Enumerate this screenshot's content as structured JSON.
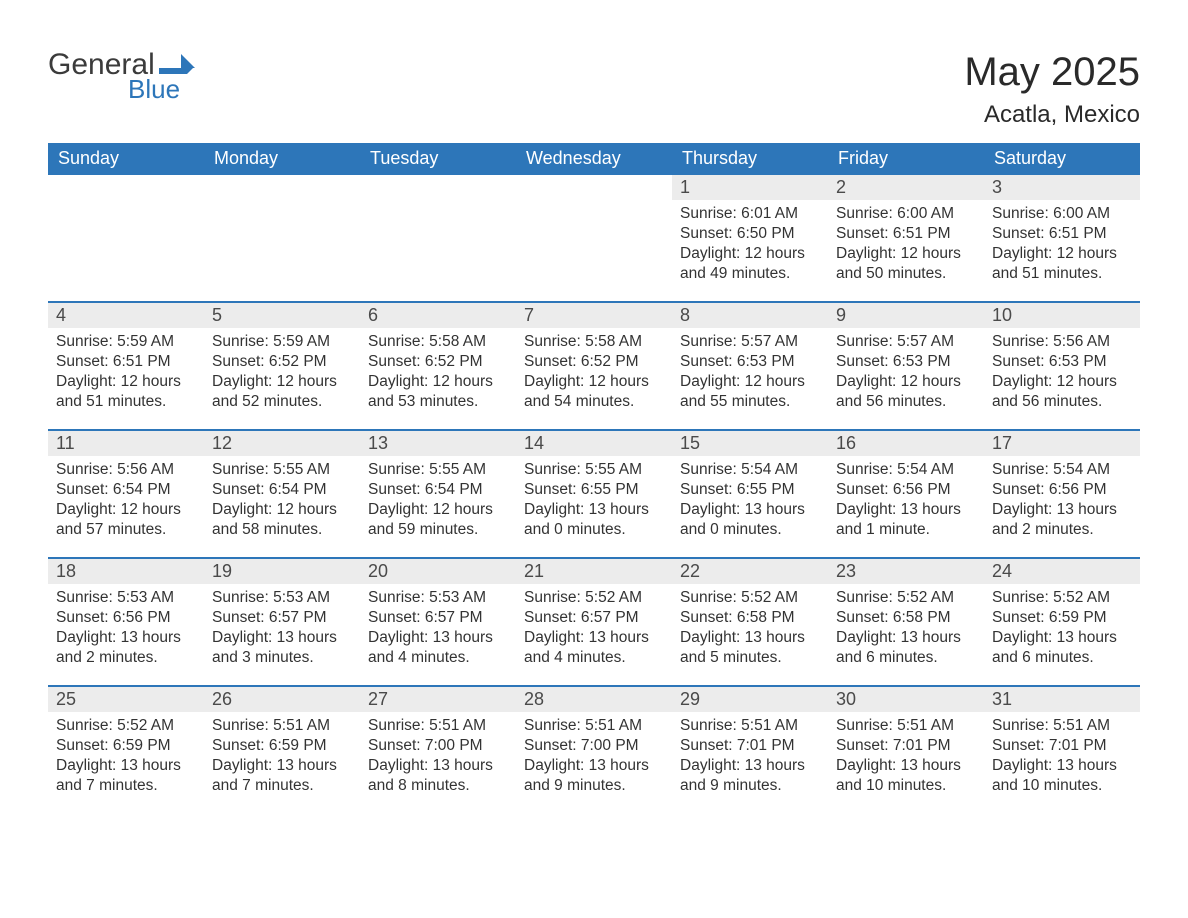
{
  "logo": {
    "word1": "General",
    "word2": "Blue",
    "flag_color": "#2d76b9"
  },
  "title": "May 2025",
  "location": "Acatla, Mexico",
  "colors": {
    "header_bg": "#2d76b9",
    "header_text": "#ffffff",
    "daynum_bg": "#ececec",
    "daynum_text": "#4a4a4a",
    "body_text": "#333333",
    "divider": "#2d76b9",
    "page_bg": "#ffffff"
  },
  "weekdays": [
    "Sunday",
    "Monday",
    "Tuesday",
    "Wednesday",
    "Thursday",
    "Friday",
    "Saturday"
  ],
  "weeks": [
    [
      {
        "blank": true
      },
      {
        "blank": true
      },
      {
        "blank": true
      },
      {
        "blank": true
      },
      {
        "n": "1",
        "sr": "6:01 AM",
        "ss": "6:50 PM",
        "dl": "12 hours and 49 minutes."
      },
      {
        "n": "2",
        "sr": "6:00 AM",
        "ss": "6:51 PM",
        "dl": "12 hours and 50 minutes."
      },
      {
        "n": "3",
        "sr": "6:00 AM",
        "ss": "6:51 PM",
        "dl": "12 hours and 51 minutes."
      }
    ],
    [
      {
        "n": "4",
        "sr": "5:59 AM",
        "ss": "6:51 PM",
        "dl": "12 hours and 51 minutes."
      },
      {
        "n": "5",
        "sr": "5:59 AM",
        "ss": "6:52 PM",
        "dl": "12 hours and 52 minutes."
      },
      {
        "n": "6",
        "sr": "5:58 AM",
        "ss": "6:52 PM",
        "dl": "12 hours and 53 minutes."
      },
      {
        "n": "7",
        "sr": "5:58 AM",
        "ss": "6:52 PM",
        "dl": "12 hours and 54 minutes."
      },
      {
        "n": "8",
        "sr": "5:57 AM",
        "ss": "6:53 PM",
        "dl": "12 hours and 55 minutes."
      },
      {
        "n": "9",
        "sr": "5:57 AM",
        "ss": "6:53 PM",
        "dl": "12 hours and 56 minutes."
      },
      {
        "n": "10",
        "sr": "5:56 AM",
        "ss": "6:53 PM",
        "dl": "12 hours and 56 minutes."
      }
    ],
    [
      {
        "n": "11",
        "sr": "5:56 AM",
        "ss": "6:54 PM",
        "dl": "12 hours and 57 minutes."
      },
      {
        "n": "12",
        "sr": "5:55 AM",
        "ss": "6:54 PM",
        "dl": "12 hours and 58 minutes."
      },
      {
        "n": "13",
        "sr": "5:55 AM",
        "ss": "6:54 PM",
        "dl": "12 hours and 59 minutes."
      },
      {
        "n": "14",
        "sr": "5:55 AM",
        "ss": "6:55 PM",
        "dl": "13 hours and 0 minutes."
      },
      {
        "n": "15",
        "sr": "5:54 AM",
        "ss": "6:55 PM",
        "dl": "13 hours and 0 minutes."
      },
      {
        "n": "16",
        "sr": "5:54 AM",
        "ss": "6:56 PM",
        "dl": "13 hours and 1 minute."
      },
      {
        "n": "17",
        "sr": "5:54 AM",
        "ss": "6:56 PM",
        "dl": "13 hours and 2 minutes."
      }
    ],
    [
      {
        "n": "18",
        "sr": "5:53 AM",
        "ss": "6:56 PM",
        "dl": "13 hours and 2 minutes."
      },
      {
        "n": "19",
        "sr": "5:53 AM",
        "ss": "6:57 PM",
        "dl": "13 hours and 3 minutes."
      },
      {
        "n": "20",
        "sr": "5:53 AM",
        "ss": "6:57 PM",
        "dl": "13 hours and 4 minutes."
      },
      {
        "n": "21",
        "sr": "5:52 AM",
        "ss": "6:57 PM",
        "dl": "13 hours and 4 minutes."
      },
      {
        "n": "22",
        "sr": "5:52 AM",
        "ss": "6:58 PM",
        "dl": "13 hours and 5 minutes."
      },
      {
        "n": "23",
        "sr": "5:52 AM",
        "ss": "6:58 PM",
        "dl": "13 hours and 6 minutes."
      },
      {
        "n": "24",
        "sr": "5:52 AM",
        "ss": "6:59 PM",
        "dl": "13 hours and 6 minutes."
      }
    ],
    [
      {
        "n": "25",
        "sr": "5:52 AM",
        "ss": "6:59 PM",
        "dl": "13 hours and 7 minutes."
      },
      {
        "n": "26",
        "sr": "5:51 AM",
        "ss": "6:59 PM",
        "dl": "13 hours and 7 minutes."
      },
      {
        "n": "27",
        "sr": "5:51 AM",
        "ss": "7:00 PM",
        "dl": "13 hours and 8 minutes."
      },
      {
        "n": "28",
        "sr": "5:51 AM",
        "ss": "7:00 PM",
        "dl": "13 hours and 9 minutes."
      },
      {
        "n": "29",
        "sr": "5:51 AM",
        "ss": "7:01 PM",
        "dl": "13 hours and 9 minutes."
      },
      {
        "n": "30",
        "sr": "5:51 AM",
        "ss": "7:01 PM",
        "dl": "13 hours and 10 minutes."
      },
      {
        "n": "31",
        "sr": "5:51 AM",
        "ss": "7:01 PM",
        "dl": "13 hours and 10 minutes."
      }
    ]
  ],
  "labels": {
    "sunrise": "Sunrise:",
    "sunset": "Sunset:",
    "daylight": "Daylight:"
  }
}
